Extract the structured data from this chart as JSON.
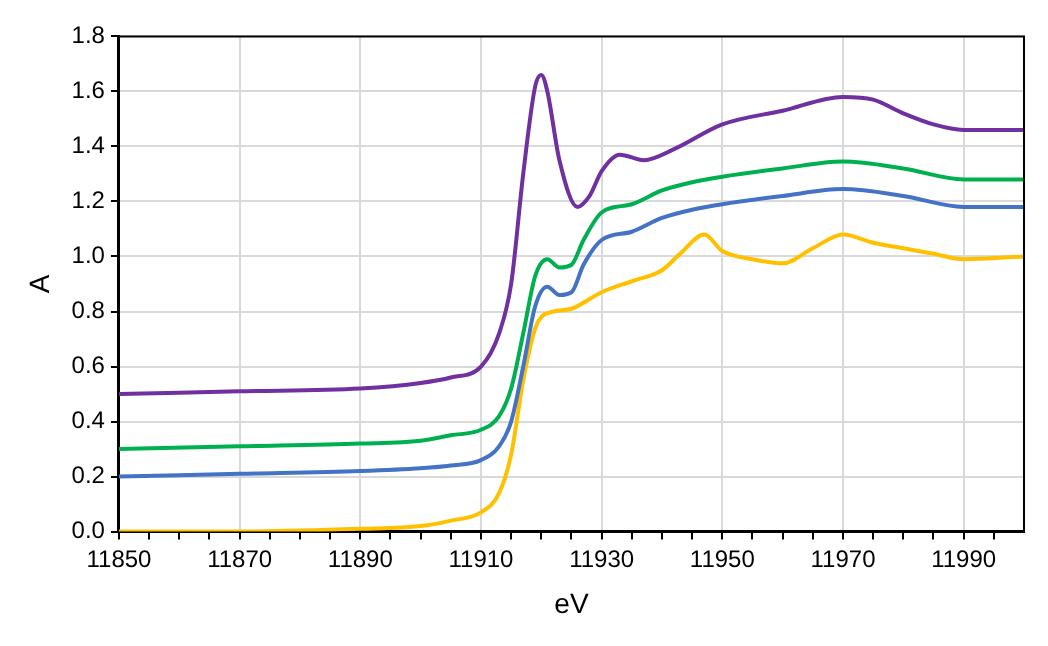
{
  "chart_data": {
    "type": "line",
    "xlabel": "eV",
    "ylabel": "A",
    "xlim": [
      11850,
      12000
    ],
    "xticks": [
      11850,
      {
        "value": 11855,
        "label": null
      },
      {
        "value": 11860,
        "label": null
      },
      {
        "value": 11865,
        "label": null
      },
      11870,
      {
        "value": 11875,
        "label": null
      },
      {
        "value": 11880,
        "label": null
      },
      {
        "value": 11885,
        "label": null
      },
      11890,
      {
        "value": 11895,
        "label": null
      },
      {
        "value": 11900,
        "label": null
      },
      {
        "value": 11905,
        "label": null
      },
      11910,
      {
        "value": 11915,
        "label": null
      },
      {
        "value": 11920,
        "label": null
      },
      {
        "value": 11925,
        "label": null
      },
      11930,
      {
        "value": 11935,
        "label": null
      },
      {
        "value": 11940,
        "label": null
      },
      {
        "value": 11945,
        "label": null
      },
      11950,
      {
        "value": 11955,
        "label": null
      },
      {
        "value": 11960,
        "label": null
      },
      {
        "value": 11965,
        "label": null
      },
      11970,
      {
        "value": 11975,
        "label": null
      },
      {
        "value": 11980,
        "label": null
      },
      {
        "value": 11985,
        "label": null
      },
      11990,
      {
        "value": 11995,
        "label": null
      }
    ],
    "ylim": [
      0,
      1.8
    ],
    "yticks": [
      {
        "value": 0,
        "label": "0.0"
      },
      0.2,
      0.4,
      0.6,
      0.8,
      {
        "value": 1,
        "label": "1.0"
      },
      1.2,
      1.4,
      1.6,
      1.8
    ],
    "grid": true,
    "legend": false,
    "marker": "none",
    "line_style": "solid",
    "series": [
      {
        "color": "#7030a0",
        "x": [
          11850,
          11870,
          11890,
          11900,
          11905,
          11910,
          11913,
          11915,
          11917,
          11919,
          11920,
          11921,
          11923,
          11926,
          11928,
          11930,
          11933,
          11937,
          11942,
          11950,
          11960,
          11970,
          11975,
          11980,
          11985,
          11990,
          12000
        ],
        "values": [
          0.5,
          0.51,
          0.52,
          0.54,
          0.56,
          0.6,
          0.72,
          0.9,
          1.3,
          1.62,
          1.66,
          1.6,
          1.35,
          1.18,
          1.22,
          1.31,
          1.37,
          1.35,
          1.39,
          1.48,
          1.53,
          1.58,
          1.57,
          1.52,
          1.48,
          1.46,
          1.46
        ]
      },
      {
        "color": "#00b050",
        "x": [
          11850,
          11870,
          11890,
          11900,
          11905,
          11910,
          11913,
          11915,
          11917,
          11919,
          11921,
          11923,
          11925,
          11927,
          11930,
          11935,
          11940,
          11945,
          11950,
          11960,
          11970,
          11980,
          11990,
          12000
        ],
        "values": [
          0.3,
          0.31,
          0.32,
          0.33,
          0.35,
          0.37,
          0.42,
          0.52,
          0.72,
          0.93,
          0.99,
          0.96,
          0.97,
          1.06,
          1.16,
          1.19,
          1.24,
          1.27,
          1.29,
          1.32,
          1.345,
          1.32,
          1.28,
          1.28
        ]
      },
      {
        "color": "#4472c4",
        "x": [
          11850,
          11870,
          11890,
          11900,
          11905,
          11910,
          11913,
          11915,
          11917,
          11919,
          11921,
          11923,
          11925,
          11927,
          11930,
          11935,
          11940,
          11945,
          11950,
          11960,
          11970,
          11980,
          11990,
          12000
        ],
        "values": [
          0.2,
          0.21,
          0.22,
          0.23,
          0.24,
          0.26,
          0.31,
          0.4,
          0.6,
          0.82,
          0.89,
          0.86,
          0.87,
          0.97,
          1.06,
          1.09,
          1.14,
          1.17,
          1.19,
          1.22,
          1.245,
          1.22,
          1.18,
          1.18
        ]
      },
      {
        "color": "#ffc000",
        "x": [
          11850,
          11870,
          11890,
          11900,
          11905,
          11910,
          11913,
          11915,
          11917,
          11919,
          11920,
          11922,
          11925,
          11930,
          11935,
          11940,
          11943,
          11947,
          11950,
          11955,
          11960,
          11965,
          11970,
          11975,
          11980,
          11985,
          11990,
          12000
        ],
        "values": [
          0,
          0,
          0.01,
          0.02,
          0.04,
          0.07,
          0.14,
          0.28,
          0.55,
          0.74,
          0.78,
          0.8,
          0.81,
          0.87,
          0.91,
          0.95,
          1.01,
          1.08,
          1.02,
          0.99,
          0.975,
          1.03,
          1.08,
          1.05,
          1.03,
          1.01,
          0.99,
          1.0
        ]
      }
    ]
  }
}
